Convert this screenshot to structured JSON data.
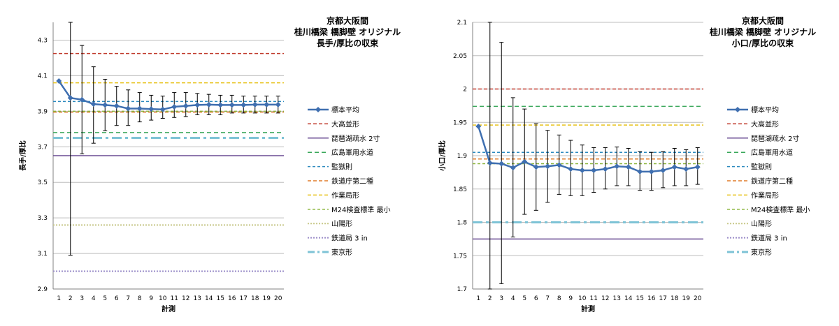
{
  "chart_data": [
    {
      "type": "line",
      "title_lines": [
        "京都大阪間",
        "桂川橋梁 橋脚壁 オリジナル",
        "長手/厚比の収束"
      ],
      "xlabel": "計測",
      "ylabel": "長手/厚比",
      "x": [
        1,
        2,
        3,
        4,
        5,
        6,
        7,
        8,
        9,
        10,
        11,
        12,
        13,
        14,
        15,
        16,
        17,
        18,
        19,
        20
      ],
      "ylim": [
        2.9,
        4.4
      ],
      "yticks": [
        "2.9",
        "3.1",
        "3.3",
        "3.5",
        "3.7",
        "3.9",
        "4.1",
        "4.3"
      ],
      "grid": true,
      "legend_position": "right",
      "series": [
        {
          "name": "標本平均",
          "kind": "mean",
          "color": "#3f6fb0",
          "values": [
            4.07,
            3.975,
            3.965,
            3.94,
            3.935,
            3.93,
            3.915,
            3.915,
            3.912,
            3.91,
            3.925,
            3.93,
            3.935,
            3.937,
            3.935,
            3.935,
            3.935,
            3.937,
            3.937,
            3.937
          ],
          "error_low": [
            null,
            3.09,
            3.66,
            3.72,
            3.79,
            3.82,
            3.82,
            3.84,
            3.85,
            3.86,
            3.865,
            3.87,
            3.88,
            3.88,
            3.88,
            3.89,
            3.89,
            3.89,
            3.89,
            3.89
          ],
          "error_high": [
            null,
            4.4,
            4.27,
            4.15,
            4.08,
            4.04,
            4.02,
            4.005,
            3.99,
            3.985,
            4.005,
            4.005,
            4.0,
            3.995,
            3.99,
            3.99,
            3.985,
            3.985,
            3.985,
            3.985
          ]
        },
        {
          "name": "大高並形",
          "kind": "ref",
          "value": 4.225,
          "color": "#c0392b",
          "dash": "5,3",
          "width": 1.5
        },
        {
          "name": "琵琶湖疏水 2寸",
          "kind": "ref",
          "value": 3.65,
          "color": "#6a4c93",
          "dash": "",
          "width": 1.5
        },
        {
          "name": "広島軍用水道",
          "kind": "ref",
          "value": 3.78,
          "color": "#3aa85a",
          "dash": "6,4",
          "width": 1.5
        },
        {
          "name": "監獄則",
          "kind": "ref",
          "value": 3.955,
          "color": "#2e8bbf",
          "dash": "4,3",
          "width": 1.5
        },
        {
          "name": "鉄道庁第二種",
          "kind": "ref",
          "value": 3.895,
          "color": "#e07b2a",
          "dash": "5,3",
          "width": 1.5
        },
        {
          "name": "作業局形",
          "kind": "ref",
          "value": 4.06,
          "color": "#e8c21a",
          "dash": "5,3",
          "width": 1.5
        },
        {
          "name": "M24検査標準 最小",
          "kind": "ref",
          "value": 3.9,
          "color": "#8ab43a",
          "dash": "4,3",
          "width": 1.5
        },
        {
          "name": "山陽形",
          "kind": "ref",
          "value": 3.26,
          "color": "#c8c88a",
          "dash": "2,2",
          "width": 2
        },
        {
          "name": "鉄道局 3 in",
          "kind": "ref",
          "value": 3.0,
          "color": "#9a8cc8",
          "dash": "2,2",
          "width": 2
        },
        {
          "name": "東京形",
          "kind": "ref",
          "value": 3.75,
          "color": "#7ec3d6",
          "dash": "14,5,4,5",
          "width": 3
        }
      ]
    },
    {
      "type": "line",
      "title_lines": [
        "京都大阪間",
        "桂川橋梁 橋脚壁 オリジナル",
        "小口/厚比の収束"
      ],
      "xlabel": "計測",
      "ylabel": "小口/厚比",
      "x": [
        1,
        2,
        3,
        4,
        5,
        6,
        7,
        8,
        9,
        10,
        11,
        12,
        13,
        14,
        15,
        16,
        17,
        18,
        19,
        20
      ],
      "ylim": [
        1.7,
        2.1
      ],
      "yticks": [
        "1.7",
        "1.75",
        "1.8",
        "1.85",
        "1.9",
        "1.95",
        "2",
        "2.05",
        "2.1"
      ],
      "grid": true,
      "legend_position": "right",
      "series": [
        {
          "name": "標本平均",
          "kind": "mean",
          "color": "#3f6fb0",
          "values": [
            1.944,
            1.889,
            1.888,
            1.882,
            1.891,
            1.883,
            1.884,
            1.886,
            1.88,
            1.878,
            1.878,
            1.88,
            1.884,
            1.883,
            1.876,
            1.876,
            1.878,
            1.883,
            1.88,
            1.883
          ],
          "error_low": [
            null,
            1.7,
            1.708,
            1.778,
            1.812,
            1.818,
            1.83,
            1.842,
            1.84,
            1.84,
            1.845,
            1.85,
            1.855,
            1.855,
            1.848,
            1.848,
            1.852,
            1.855,
            1.855,
            1.857
          ],
          "error_high": [
            null,
            2.1,
            2.07,
            1.987,
            1.97,
            1.948,
            1.938,
            1.931,
            1.923,
            1.916,
            1.912,
            1.912,
            1.913,
            1.911,
            1.906,
            1.905,
            1.906,
            1.911,
            1.909,
            1.912
          ]
        },
        {
          "name": "大高並形",
          "kind": "ref",
          "value": 2.0,
          "color": "#c0392b",
          "dash": "5,3",
          "width": 1.5
        },
        {
          "name": "琵琶湖疏水 2寸",
          "kind": "ref",
          "value": 1.775,
          "color": "#6a4c93",
          "dash": "",
          "width": 1.5
        },
        {
          "name": "広島軍用水道",
          "kind": "ref",
          "value": 1.974,
          "color": "#3aa85a",
          "dash": "6,4",
          "width": 1.5
        },
        {
          "name": "監獄則",
          "kind": "ref",
          "value": 1.905,
          "color": "#2e8bbf",
          "dash": "4,3",
          "width": 1.5
        },
        {
          "name": "鉄道庁第二種",
          "kind": "ref",
          "value": 1.895,
          "color": "#e07b2a",
          "dash": "5,3",
          "width": 1.5
        },
        {
          "name": "作業局形",
          "kind": "ref",
          "value": 1.946,
          "color": "#e8c21a",
          "dash": "5,3",
          "width": 1.5
        },
        {
          "name": "M24検査標準 最小",
          "kind": "ref",
          "value": 1.888,
          "color": "#8ab43a",
          "dash": "4,3",
          "width": 1.5
        },
        {
          "name": "山陽形",
          "kind": "ref",
          "value": null,
          "color": "#c8c88a",
          "dash": "2,2",
          "width": 2
        },
        {
          "name": "鉄道局 3 in",
          "kind": "ref",
          "value": null,
          "color": "#9a8cc8",
          "dash": "2,2",
          "width": 2
        },
        {
          "name": "東京形",
          "kind": "ref",
          "value": 1.8,
          "color": "#7ec3d6",
          "dash": "14,5,4,5",
          "width": 3
        }
      ]
    }
  ]
}
